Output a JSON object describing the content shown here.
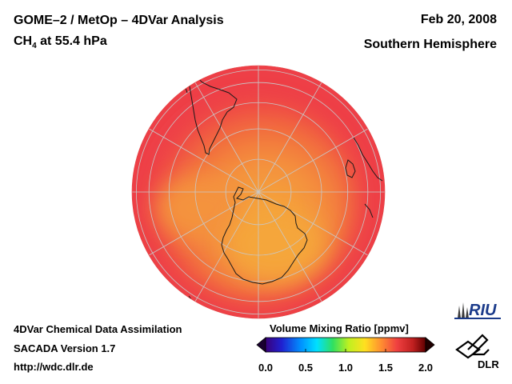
{
  "header": {
    "title": "GOME–2 / MetOp – 4DVar Analysis",
    "species_main": "CH",
    "species_sub": "4",
    "species_rest": " at 55.4 hPa",
    "date": "Feb 20, 2008",
    "region": "Southern Hemisphere"
  },
  "footer": {
    "line1": "4DVar Chemical Data Assimilation",
    "line2": "SACADA Version 1.7",
    "line3": "http://wdc.dlr.de"
  },
  "colorbar": {
    "title": "Volume Mixing Ratio [ppmv]",
    "ticks": [
      "0.0",
      "0.5",
      "1.0",
      "1.5",
      "2.0"
    ],
    "min": 0.0,
    "max": 2.0
  },
  "map": {
    "projection": "orthographic south polar",
    "field_range_ppmv": [
      1.45,
      1.75
    ],
    "colors": {
      "high": "#ee3f47",
      "mid": "#f26a3e",
      "low": "#f5a63a",
      "coast": "#1a1a1a",
      "grid": "#c8c8c8"
    }
  },
  "logos": {
    "riu": "RIU",
    "dlr": "DLR"
  }
}
